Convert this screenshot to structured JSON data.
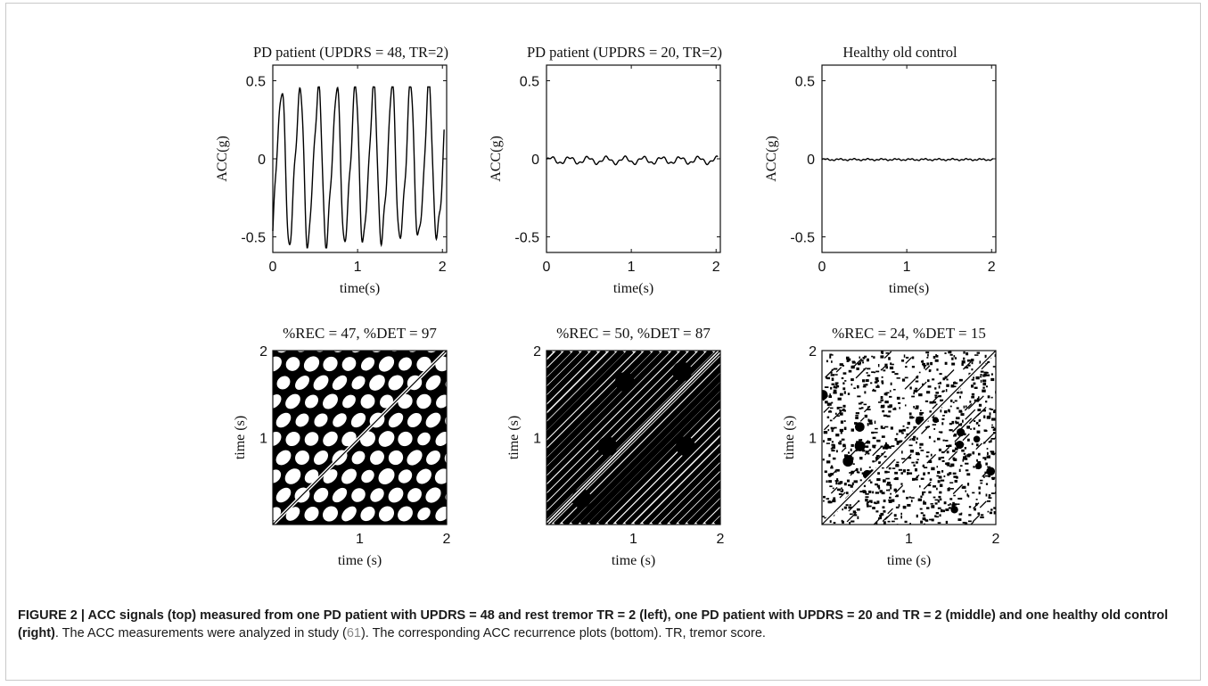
{
  "chart_data": [
    {
      "type": "line",
      "title": "PD patient (UPDRS = 48, TR=2)",
      "xlabel": "time(s)",
      "ylabel": "ACC(g)",
      "xlim": [
        0,
        2.05
      ],
      "ylim": [
        -0.6,
        0.6
      ],
      "xticks": [
        "0",
        "1",
        "2"
      ],
      "yticks": [
        "0.5",
        "0",
        "-0.5"
      ],
      "series": [
        {
          "amplitude": 0.48,
          "frequency_hz": 4.6,
          "offset": -0.05
        }
      ]
    },
    {
      "type": "line",
      "title": "PD patient (UPDRS = 20, TR=2)",
      "xlabel": "time(s)",
      "ylabel": "ACC(g)",
      "xlim": [
        0,
        2.05
      ],
      "ylim": [
        -0.6,
        0.6
      ],
      "xticks": [
        "0",
        "1",
        "2"
      ],
      "yticks": [
        "0.5",
        "0",
        "-0.5"
      ],
      "series": [
        {
          "amplitude": 0.02,
          "frequency_hz": 4.6,
          "offset": -0.01
        }
      ]
    },
    {
      "type": "line",
      "title": "Healthy old control",
      "xlabel": "time(s)",
      "ylabel": "ACC(g)",
      "xlim": [
        0,
        2.05
      ],
      "ylim": [
        -0.6,
        0.6
      ],
      "xticks": [
        "0",
        "1",
        "2"
      ],
      "yticks": [
        "0.5",
        "0",
        "-0.5"
      ],
      "series": [
        {
          "amplitude": 0.004,
          "frequency_hz": 6,
          "offset": -0.005
        }
      ]
    },
    {
      "type": "heatmap",
      "title": "%REC = 47, %DET = 97",
      "xlabel": "time (s)",
      "ylabel": "time (s)",
      "xlim": [
        0,
        2
      ],
      "ylim": [
        0,
        2
      ],
      "xticks": [
        "1",
        "2"
      ],
      "yticks": [
        "2",
        "1"
      ],
      "rec_percent": 47,
      "det_percent": 97
    },
    {
      "type": "heatmap",
      "title": "%REC = 50, %DET = 87",
      "xlabel": "time (s)",
      "ylabel": "time (s)",
      "xlim": [
        0,
        2
      ],
      "ylim": [
        0,
        2
      ],
      "xticks": [
        "1",
        "2"
      ],
      "yticks": [
        "2",
        "1"
      ],
      "rec_percent": 50,
      "det_percent": 87
    },
    {
      "type": "heatmap",
      "title": "%REC = 24, %DET = 15",
      "xlabel": "time (s)",
      "ylabel": "time (s)",
      "xlim": [
        0,
        2
      ],
      "ylim": [
        0,
        2
      ],
      "xticks": [
        "1",
        "2"
      ],
      "yticks": [
        "2",
        "1"
      ],
      "rec_percent": 24,
      "det_percent": 15
    }
  ],
  "caption": {
    "label": "FIGURE 2 | ACC signals (top) measured from one PD patient with UPDRS = 48 and rest tremor TR = 2 (left), one PD patient with UPDRS = 20 and TR = 2 (middle) and one healthy old control (right)",
    "text1": ". The ACC measurements were analyzed in study (",
    "ref": "61",
    "text2": "). The corresponding ACC recurrence plots (bottom). TR, tremor score."
  }
}
